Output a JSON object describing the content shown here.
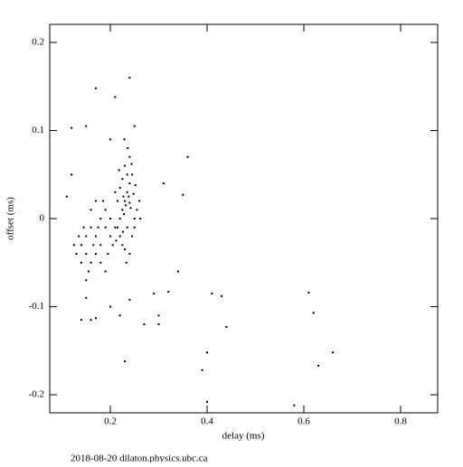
{
  "chart_data": {
    "type": "scatter",
    "x_label": "delay (ms)",
    "y_label": "offset (ms)",
    "footer": "2018-08-20  dilaton.physics.ubc.ca",
    "xlim": [
      0.0748,
      0.8766
    ],
    "ylim": [
      -0.2205,
      0.2205
    ],
    "xticks": [
      0.2,
      0.4,
      0.6,
      0.8
    ],
    "yticks": [
      -0.2,
      -0.1,
      0,
      0.1,
      0.2
    ],
    "color": "#000000",
    "x": [
      0.17,
      0.24,
      0.21,
      0.15,
      0.12,
      0.36,
      0.35,
      0.31,
      0.41,
      0.43,
      0.34,
      0.32,
      0.29,
      0.3,
      0.27,
      0.3,
      0.61,
      0.62,
      0.44,
      0.66,
      0.4,
      0.63,
      0.39,
      0.4,
      0.58,
      0.23,
      0.14,
      0.16,
      0.17,
      0.2,
      0.24,
      0.22,
      0.15,
      0.11,
      0.12,
      0.25,
      0.2,
      0.22,
      0.225,
      0.23,
      0.235,
      0.24,
      0.245,
      0.23,
      0.24,
      0.235,
      0.22,
      0.225,
      0.215,
      0.21,
      0.25,
      0.255,
      0.26,
      0.245,
      0.24,
      0.23,
      0.235,
      0.225,
      0.22,
      0.215,
      0.228,
      0.232,
      0.238,
      0.242,
      0.248,
      0.252,
      0.226,
      0.218,
      0.244,
      0.236,
      0.229,
      0.262,
      0.212,
      0.233,
      0.24,
      0.227,
      0.25,
      0.14,
      0.15,
      0.16,
      0.17,
      0.18,
      0.19,
      0.2,
      0.13,
      0.14,
      0.15,
      0.16,
      0.17,
      0.18,
      0.19,
      0.2,
      0.155,
      0.165,
      0.175,
      0.185,
      0.195,
      0.145,
      0.135,
      0.125,
      0.16,
      0.17,
      0.18,
      0.21,
      0.205,
      0.15,
      0.19
    ],
    "y": [
      0.148,
      0.16,
      0.138,
      0.105,
      0.103,
      0.07,
      0.027,
      0.04,
      -0.085,
      -0.088,
      -0.06,
      -0.083,
      -0.085,
      -0.11,
      -0.12,
      -0.12,
      -0.084,
      -0.107,
      -0.123,
      -0.152,
      -0.152,
      -0.167,
      -0.172,
      -0.208,
      -0.212,
      -0.162,
      -0.115,
      -0.115,
      -0.113,
      -0.1,
      -0.092,
      -0.11,
      -0.09,
      0.025,
      0.05,
      0.105,
      0.09,
      0.0,
      0.01,
      0.02,
      0.03,
      0.04,
      0.05,
      0.06,
      0.07,
      -0.01,
      -0.02,
      -0.03,
      0.02,
      0.03,
      0.0,
      0.01,
      0.02,
      -0.02,
      -0.04,
      -0.035,
      0.05,
      0.045,
      0.035,
      -0.01,
      0.005,
      0.015,
      0.025,
      0.012,
      0.028,
      0.038,
      -0.015,
      0.055,
      0.062,
      0.08,
      0.09,
      0.0,
      -0.025,
      -0.05,
      0.018,
      0.025,
      -0.01,
      -0.03,
      -0.02,
      -0.01,
      -0.02,
      -0.03,
      -0.01,
      -0.02,
      -0.04,
      -0.05,
      -0.04,
      -0.05,
      -0.04,
      0.0,
      0.01,
      0.0,
      -0.06,
      -0.03,
      -0.01,
      0.02,
      -0.04,
      -0.01,
      -0.02,
      -0.03,
      0.01,
      0.02,
      -0.05,
      -0.01,
      -0.03,
      -0.07,
      -0.06
    ]
  }
}
